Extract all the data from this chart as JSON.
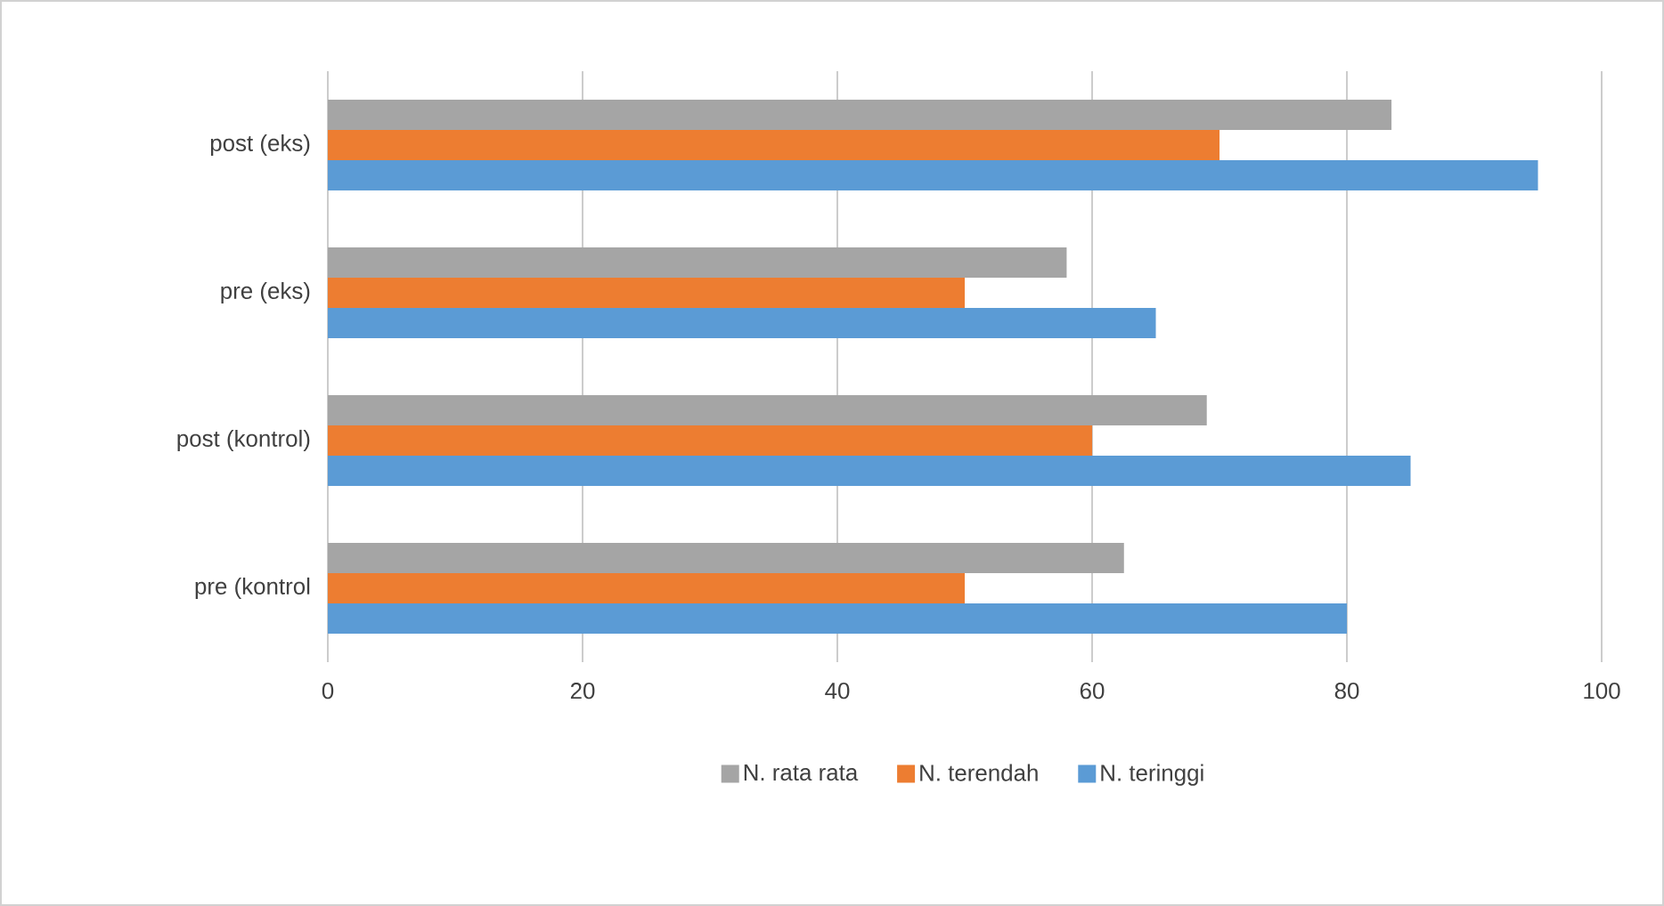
{
  "chart_data": {
    "type": "bar",
    "orientation": "horizontal",
    "categories": [
      "post (eks)",
      "pre (eks)",
      "post (kontrol)",
      "pre (kontrol"
    ],
    "series": [
      {
        "name": "N. rata rata",
        "color": "#a5a5a5",
        "values": [
          83.5,
          58,
          69,
          62.5
        ]
      },
      {
        "name": "N. terendah",
        "color": "#ed7d31",
        "values": [
          70,
          50,
          60,
          50
        ]
      },
      {
        "name": "N. teringgi",
        "color": "#5b9bd5",
        "values": [
          95,
          65,
          85,
          80
        ]
      }
    ],
    "xlim": [
      0,
      100
    ],
    "xticks": [
      0,
      20,
      40,
      60,
      80,
      100
    ],
    "grid": "x",
    "legend": "bottom"
  }
}
